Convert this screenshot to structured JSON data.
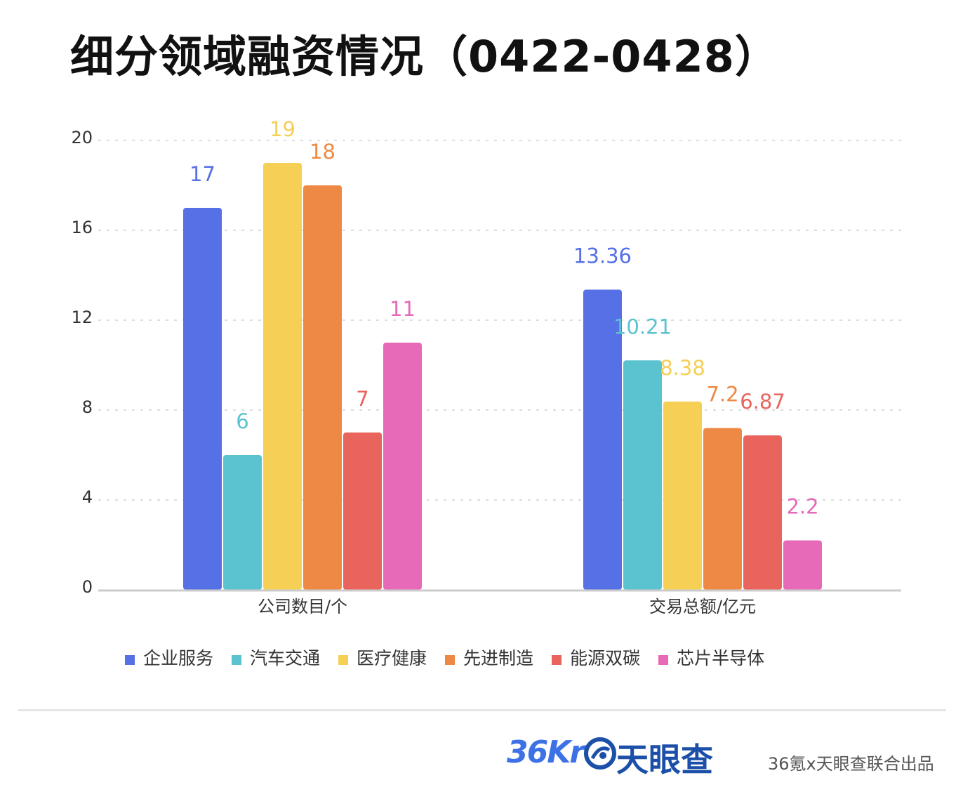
{
  "title": "细分领域融资情况（0422-0428）",
  "chart_data": {
    "type": "bar",
    "categories": [
      "公司数目/个",
      "交易总额/亿元"
    ],
    "ylim": [
      0,
      20
    ],
    "yticks": [
      "0",
      "4",
      "8",
      "12",
      "16",
      "20"
    ],
    "grid": true,
    "legend_position": "bottom",
    "series": [
      {
        "name": "企业服务",
        "values": [
          17,
          13.36
        ],
        "labels": [
          "17",
          "13.36"
        ],
        "color": "#5670e6"
      },
      {
        "name": "汽车交通",
        "values": [
          6,
          10.21
        ],
        "labels": [
          "6",
          "10.21"
        ],
        "color": "#5bc2d0"
      },
      {
        "name": "医疗健康",
        "values": [
          19,
          8.38
        ],
        "labels": [
          "19",
          "8.38"
        ],
        "color": "#f6cf55"
      },
      {
        "name": "先进制造",
        "values": [
          18,
          7.2
        ],
        "labels": [
          "18",
          "7.2"
        ],
        "color": "#ed8944"
      },
      {
        "name": "能源双碳",
        "values": [
          7,
          6.87
        ],
        "labels": [
          "7",
          "6.87"
        ],
        "color": "#e8645c"
      },
      {
        "name": "芯片半导体",
        "values": [
          11,
          2.2
        ],
        "labels": [
          "11",
          "2.2"
        ],
        "color": "#e66ab8"
      }
    ]
  },
  "footer": {
    "brand_36kr": "36Kr",
    "brand_tyc": "天眼查",
    "credit": "36氪x天眼查联合出品",
    "icon": "tianyancha-logo-icon"
  }
}
